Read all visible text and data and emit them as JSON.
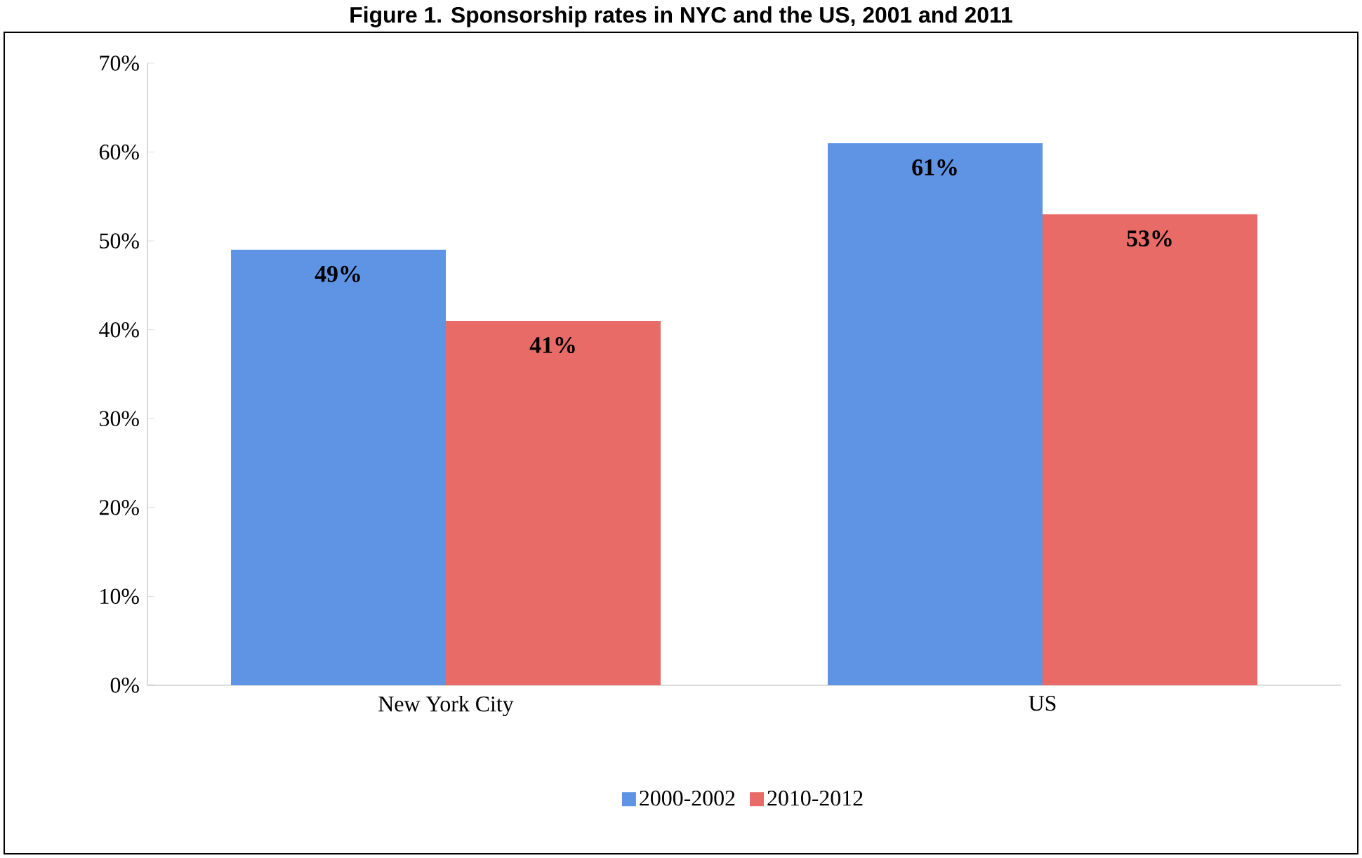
{
  "chart_data": {
    "type": "bar",
    "title": "Figure 1. Sponsorship rates in NYC and the US, 2001 and 2011",
    "categories": [
      "New York City",
      "US"
    ],
    "series": [
      {
        "name": "2000-2002",
        "color": "#5f93e4",
        "values": [
          49,
          61
        ],
        "value_labels": [
          "49%",
          "61%"
        ]
      },
      {
        "name": "2010-2012",
        "color": "#e86b68",
        "values": [
          41,
          53
        ],
        "value_labels": [
          "41%",
          "53%"
        ]
      }
    ],
    "ylim": [
      0,
      70
    ],
    "yticks": [
      {
        "value": 0,
        "label": "0%"
      },
      {
        "value": 10,
        "label": "10%"
      },
      {
        "value": 20,
        "label": "20%"
      },
      {
        "value": 30,
        "label": "30%"
      },
      {
        "value": 40,
        "label": "40%"
      },
      {
        "value": 50,
        "label": "50%"
      },
      {
        "value": 60,
        "label": "60%"
      },
      {
        "value": 70,
        "label": "70%"
      }
    ],
    "grid": false,
    "legend": "bottom"
  }
}
